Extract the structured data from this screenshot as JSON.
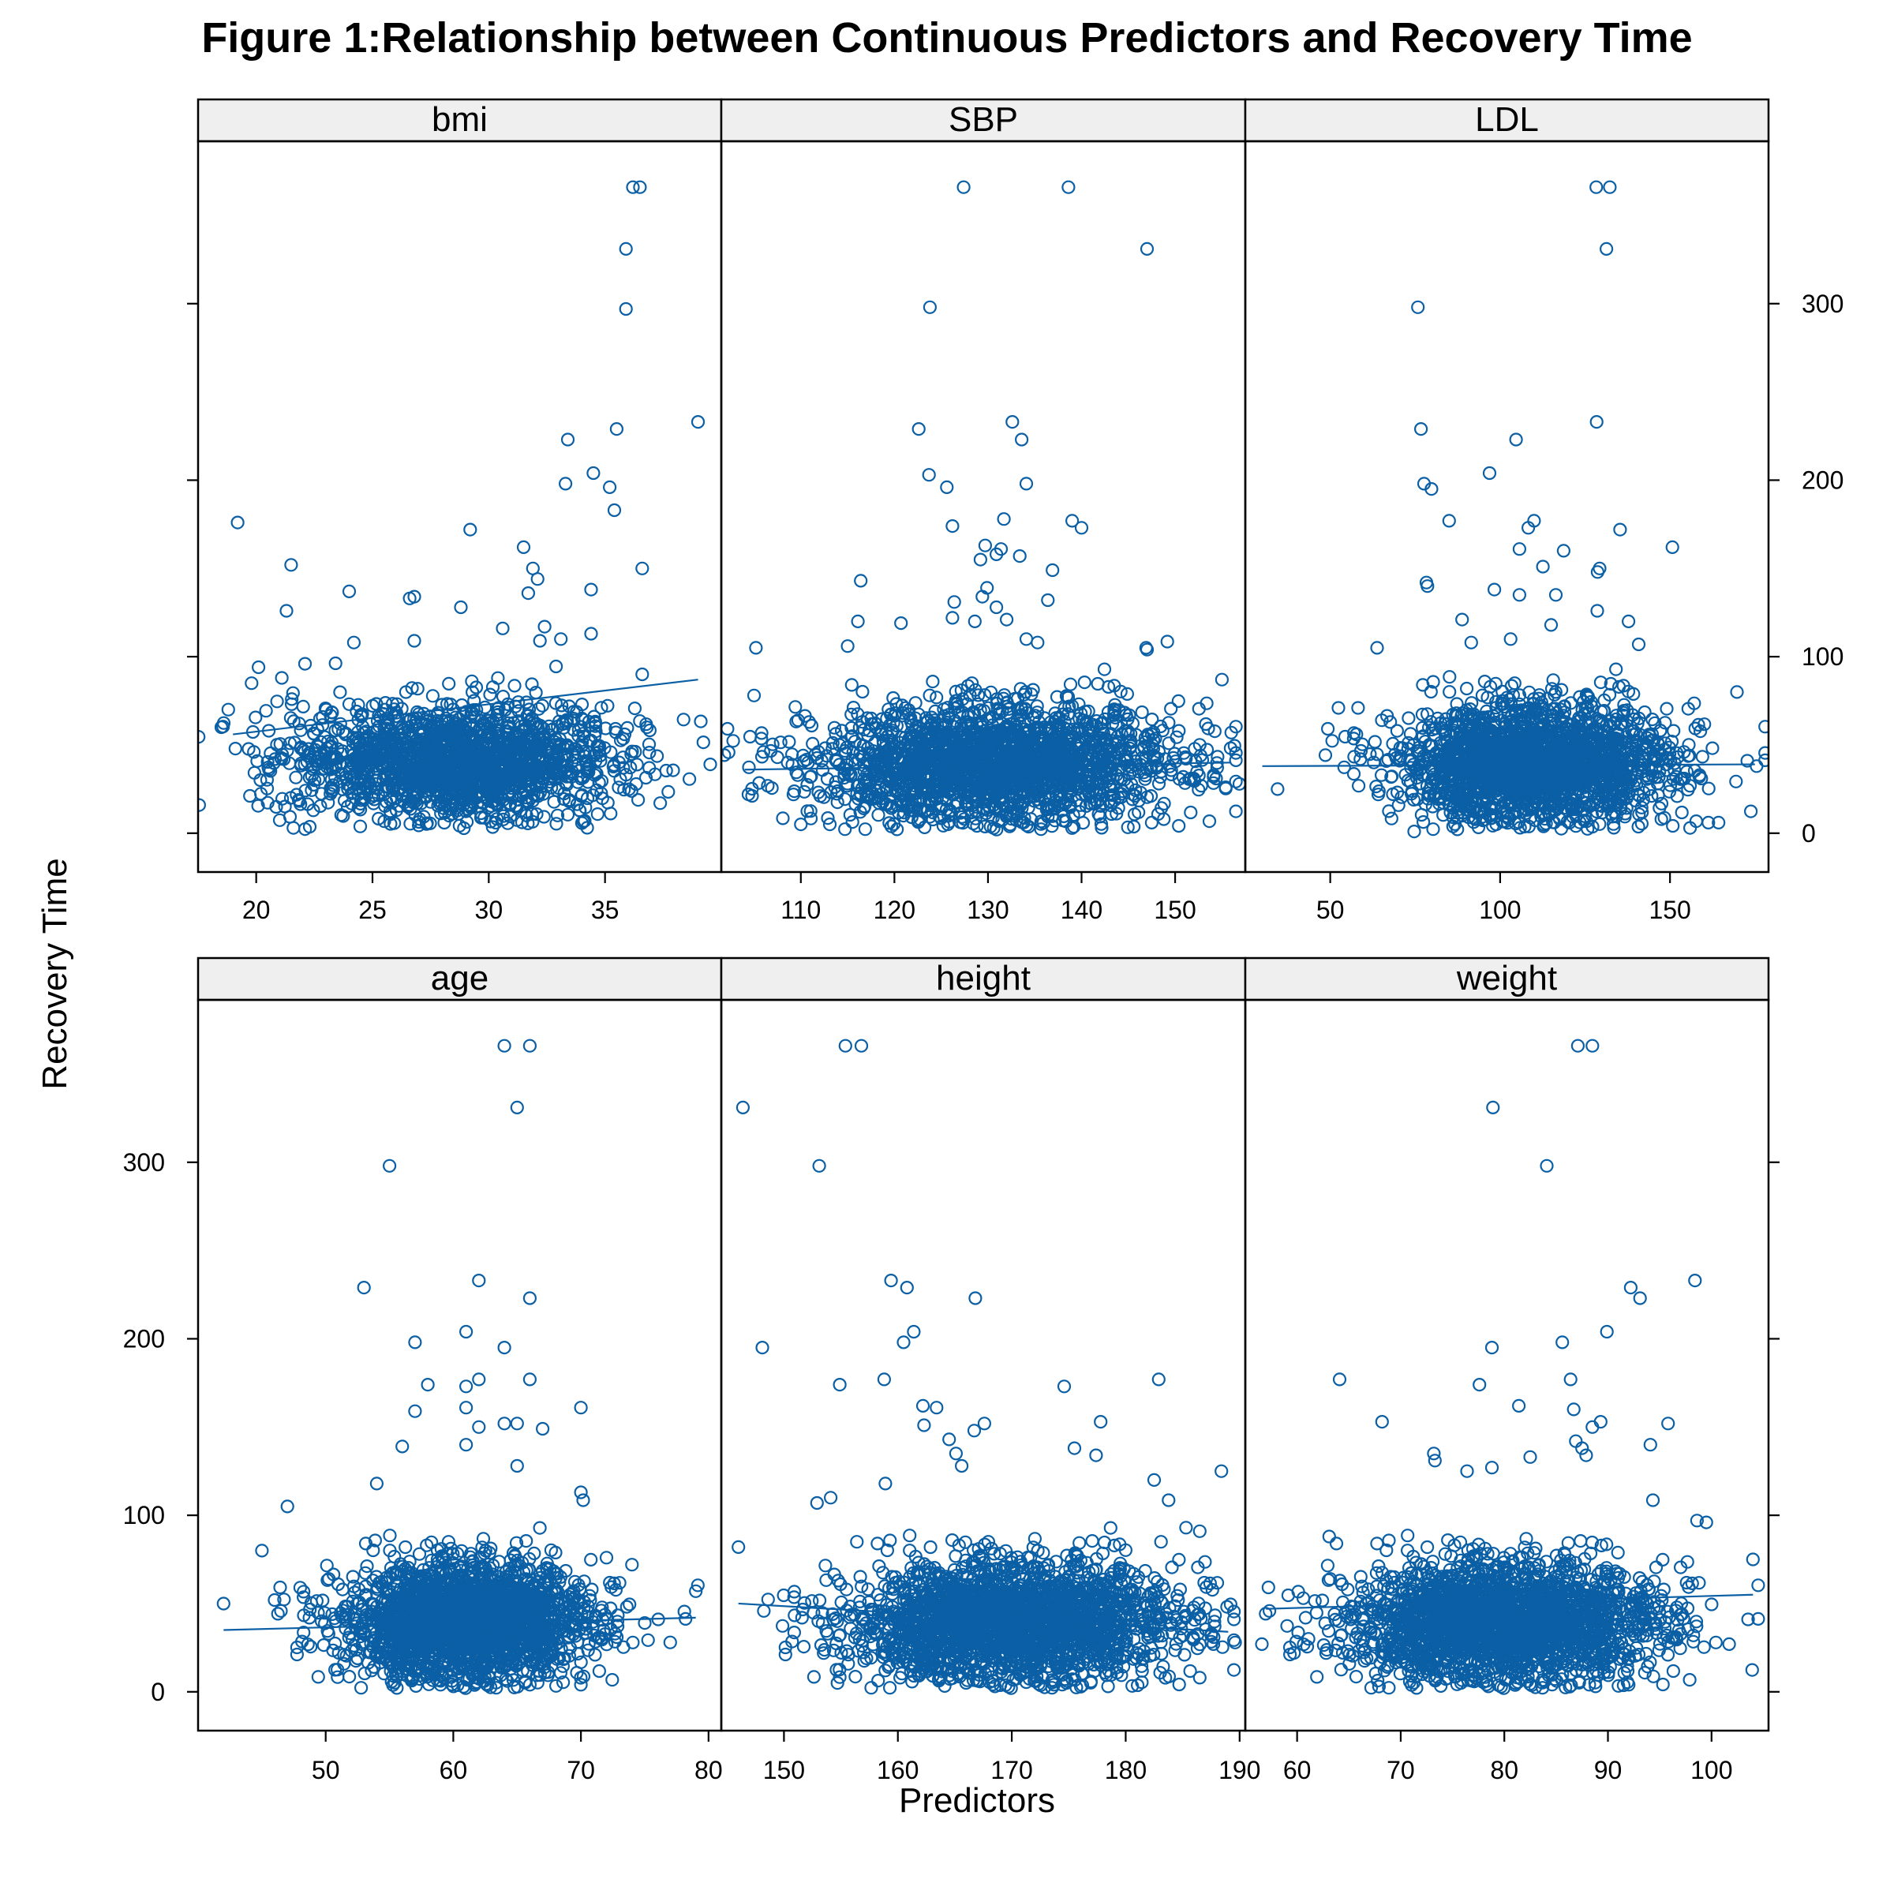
{
  "chart_data": {
    "type": "scatter",
    "title": "Figure 1:Relationship between Continuous Predictors and Recovery Time",
    "xlabel": "Predictors",
    "ylabel": "Recovery Time",
    "ylim": [
      -22,
      392
    ],
    "y_ticks": [
      0,
      100,
      200,
      300
    ],
    "layout": "3 columns x 2 rows, shared y axis, y ticks alternating right (top row) / left (bottom row), x ticks below each row",
    "grid": false,
    "marker_color": "#0b5fa5",
    "strip_color": "#efefef",
    "panels": [
      {
        "name": "bmi",
        "xlim": [
          17.5,
          40.0
        ],
        "x_ticks": [
          20,
          25,
          30,
          35
        ],
        "fit_line": [
          [
            19.0,
            56
          ],
          [
            39.0,
            87
          ]
        ],
        "cloud": {
          "n": 1700,
          "x_mean": 28.5,
          "x_sd": 3.3,
          "y_mean": 40,
          "y_sd": 16
        },
        "points": [
          [
            19.2,
            176
          ],
          [
            21.5,
            152
          ],
          [
            21.3,
            126
          ],
          [
            24.0,
            137
          ],
          [
            26.6,
            133
          ],
          [
            26.8,
            134
          ],
          [
            28.8,
            128
          ],
          [
            29.2,
            172
          ],
          [
            31.5,
            162
          ],
          [
            31.9,
            150
          ],
          [
            32.1,
            144
          ],
          [
            31.7,
            136
          ],
          [
            32.4,
            117
          ],
          [
            32.2,
            109
          ],
          [
            33.1,
            110
          ],
          [
            33.3,
            198
          ],
          [
            33.4,
            223
          ],
          [
            34.4,
            138
          ],
          [
            34.5,
            204
          ],
          [
            35.2,
            196
          ],
          [
            35.4,
            183
          ],
          [
            35.5,
            229
          ],
          [
            36.6,
            150
          ],
          [
            39.0,
            233
          ],
          [
            35.9,
            297
          ],
          [
            35.9,
            331
          ],
          [
            36.2,
            366
          ],
          [
            36.5,
            366
          ],
          [
            18.8,
            70
          ],
          [
            19.8,
            85
          ],
          [
            20.1,
            94
          ],
          [
            21.1,
            88
          ],
          [
            22.1,
            96
          ],
          [
            24.2,
            108
          ],
          [
            26.8,
            109
          ],
          [
            30.6,
            116
          ],
          [
            34.4,
            113
          ],
          [
            36.6,
            90
          ],
          [
            36.8,
            60
          ],
          [
            19.9,
            46
          ],
          [
            21.6,
            3
          ],
          [
            34.8,
            44
          ],
          [
            33.9,
            13
          ]
        ]
      },
      {
        "name": "SBP",
        "xlim": [
          101.5,
          157.5
        ],
        "x_ticks": [
          110,
          120,
          130,
          140,
          150
        ],
        "fit_line": [
          [
            104.0,
            36
          ],
          [
            156.0,
            40
          ]
        ],
        "cloud": {
          "n": 2000,
          "x_mean": 131,
          "x_sd": 9.5,
          "y_mean": 40,
          "y_sd": 16
        },
        "points": [
          [
            127.4,
            366
          ],
          [
            138.6,
            366
          ],
          [
            147.0,
            331
          ],
          [
            123.8,
            298
          ],
          [
            122.6,
            229
          ],
          [
            123.7,
            203
          ],
          [
            125.6,
            196
          ],
          [
            132.6,
            233
          ],
          [
            133.6,
            223
          ],
          [
            134.1,
            198
          ],
          [
            139.0,
            177
          ],
          [
            140.0,
            173
          ],
          [
            126.2,
            174
          ],
          [
            131.7,
            178
          ],
          [
            129.7,
            163
          ],
          [
            129.2,
            155
          ],
          [
            130.9,
            158
          ],
          [
            131.4,
            161
          ],
          [
            133.4,
            157
          ],
          [
            136.9,
            149
          ],
          [
            116.4,
            143
          ],
          [
            126.4,
            131
          ],
          [
            129.9,
            139
          ],
          [
            129.4,
            134
          ],
          [
            130.9,
            128
          ],
          [
            128.6,
            120
          ],
          [
            132.0,
            121
          ],
          [
            136.4,
            132
          ],
          [
            134.1,
            110
          ],
          [
            116.1,
            120
          ],
          [
            115.0,
            106
          ],
          [
            105.2,
            105
          ],
          [
            105.0,
            78
          ],
          [
            120.7,
            119
          ],
          [
            126.2,
            122
          ],
          [
            135.3,
            108
          ],
          [
            146.9,
            105
          ],
          [
            147.0,
            104
          ],
          [
            155.0,
            87
          ],
          [
            156.0,
            57
          ],
          [
            155.4,
            26
          ],
          [
            104.4,
            22
          ],
          [
            106.0,
            46
          ],
          [
            110.0,
            5
          ],
          [
            107.5,
            43
          ],
          [
            113.1,
            5
          ],
          [
            147.5,
            6
          ],
          [
            150.4,
            58
          ]
        ]
      },
      {
        "name": "LDL",
        "xlim": [
          25.0,
          179.0
        ],
        "x_ticks": [
          50,
          100,
          150
        ],
        "fit_line": [
          [
            30.0,
            38
          ],
          [
            175.0,
            39
          ]
        ],
        "cloud": {
          "n": 2000,
          "x_mean": 110,
          "x_sd": 20,
          "y_mean": 40,
          "y_sd": 16
        },
        "points": [
          [
            128.3,
            366
          ],
          [
            132.3,
            366
          ],
          [
            131.3,
            331
          ],
          [
            75.8,
            298
          ],
          [
            76.7,
            229
          ],
          [
            77.6,
            198
          ],
          [
            79.8,
            195
          ],
          [
            96.9,
            204
          ],
          [
            104.7,
            223
          ],
          [
            128.4,
            233
          ],
          [
            85.0,
            177
          ],
          [
            108.3,
            173
          ],
          [
            110.0,
            177
          ],
          [
            112.6,
            151
          ],
          [
            129.3,
            150
          ],
          [
            128.7,
            148
          ],
          [
            135.3,
            172
          ],
          [
            150.7,
            162
          ],
          [
            118.7,
            160
          ],
          [
            105.7,
            161
          ],
          [
            78.3,
            142
          ],
          [
            78.6,
            140
          ],
          [
            98.3,
            138
          ],
          [
            105.7,
            135
          ],
          [
            116.4,
            135
          ],
          [
            128.6,
            126
          ],
          [
            88.8,
            121
          ],
          [
            91.5,
            108
          ],
          [
            103.1,
            110
          ],
          [
            115.0,
            118
          ],
          [
            137.8,
            120
          ],
          [
            140.8,
            107
          ],
          [
            63.8,
            105
          ],
          [
            52.4,
            71
          ],
          [
            58.2,
            71
          ],
          [
            57.7,
            56
          ],
          [
            169.7,
            80
          ],
          [
            175.5,
            38
          ],
          [
            34.5,
            25
          ],
          [
            74.7,
            1
          ],
          [
            155.9,
            3
          ],
          [
            161.3,
            6
          ],
          [
            164.3,
            6
          ]
        ]
      },
      {
        "name": "age",
        "xlim": [
          40.0,
          81.0
        ],
        "x_ticks": [
          50,
          60,
          70,
          80
        ],
        "fit_line": [
          [
            42.0,
            35
          ],
          [
            79.0,
            42
          ]
        ],
        "cloud": {
          "n": 2200,
          "x_mean": 61,
          "x_sd": 4.8,
          "y_mean": 40,
          "y_sd": 16
        },
        "points": [
          [
            64.0,
            366
          ],
          [
            66.0,
            366
          ],
          [
            65.0,
            331
          ],
          [
            55.0,
            298
          ],
          [
            53.0,
            229
          ],
          [
            62.0,
            233
          ],
          [
            66.0,
            223
          ],
          [
            57.0,
            198
          ],
          [
            61.0,
            204
          ],
          [
            64.0,
            195
          ],
          [
            58.0,
            174
          ],
          [
            61.0,
            173
          ],
          [
            62.0,
            177
          ],
          [
            66.0,
            177
          ],
          [
            57.0,
            159
          ],
          [
            61.0,
            161
          ],
          [
            62.0,
            150
          ],
          [
            64.0,
            152
          ],
          [
            65.0,
            152
          ],
          [
            67.0,
            149
          ],
          [
            70.0,
            161
          ],
          [
            56.0,
            139
          ],
          [
            61.0,
            140
          ],
          [
            65.0,
            128
          ],
          [
            70.0,
            113
          ],
          [
            54.0,
            118
          ],
          [
            47.0,
            105
          ],
          [
            42.0,
            50
          ],
          [
            45.0,
            80
          ],
          [
            48.0,
            59
          ],
          [
            46.0,
            52
          ],
          [
            74.0,
            72
          ],
          [
            72.0,
            76
          ],
          [
            79.0,
            57
          ],
          [
            77.0,
            28
          ],
          [
            75.0,
            39
          ],
          [
            70.0,
            4
          ],
          [
            66.0,
            4
          ],
          [
            59.0,
            4
          ]
        ]
      },
      {
        "name": "height",
        "xlim": [
          144.5,
          190.5
        ],
        "x_ticks": [
          150,
          160,
          170,
          180,
          190
        ],
        "fit_line": [
          [
            146.0,
            50
          ],
          [
            189.0,
            34
          ]
        ],
        "cloud": {
          "n": 2200,
          "x_mean": 170,
          "x_sd": 7.2,
          "y_mean": 40,
          "y_sd": 16
        },
        "points": [
          [
            155.4,
            366
          ],
          [
            156.8,
            366
          ],
          [
            146.4,
            331
          ],
          [
            153.1,
            298
          ],
          [
            148.1,
            195
          ],
          [
            159.4,
            233
          ],
          [
            160.8,
            229
          ],
          [
            166.8,
            223
          ],
          [
            160.5,
            198
          ],
          [
            161.4,
            204
          ],
          [
            154.9,
            174
          ],
          [
            158.8,
            177
          ],
          [
            162.2,
            162
          ],
          [
            163.4,
            161
          ],
          [
            162.3,
            151
          ],
          [
            166.7,
            148
          ],
          [
            167.6,
            152
          ],
          [
            174.6,
            173
          ],
          [
            182.9,
            177
          ],
          [
            177.8,
            153
          ],
          [
            164.5,
            143
          ],
          [
            165.1,
            135
          ],
          [
            165.6,
            128
          ],
          [
            175.5,
            138
          ],
          [
            177.4,
            134
          ],
          [
            152.9,
            107
          ],
          [
            154.1,
            110
          ],
          [
            146.0,
            82
          ],
          [
            156.4,
            85
          ],
          [
            158.9,
            118
          ],
          [
            188.4,
            125
          ],
          [
            186.5,
            91
          ],
          [
            185.3,
            93
          ],
          [
            183.1,
            85
          ],
          [
            187.7,
            27
          ],
          [
            186.5,
            8
          ],
          [
            174.8,
            5
          ],
          [
            173.7,
            4
          ],
          [
            154.7,
            5
          ],
          [
            160.2,
            8
          ],
          [
            161.8,
            10
          ],
          [
            182.5,
            120
          ]
        ]
      },
      {
        "name": "weight",
        "xlim": [
          55.0,
          105.5
        ],
        "x_ticks": [
          60,
          70,
          80,
          90,
          100
        ],
        "fit_line": [
          [
            57.0,
            47
          ],
          [
            104.0,
            55
          ]
        ],
        "cloud": {
          "n": 2200,
          "x_mean": 80,
          "x_sd": 7.5,
          "y_mean": 40,
          "y_sd": 16
        },
        "points": [
          [
            87.1,
            366
          ],
          [
            88.5,
            366
          ],
          [
            78.9,
            331
          ],
          [
            84.1,
            298
          ],
          [
            92.2,
            229
          ],
          [
            93.1,
            223
          ],
          [
            98.4,
            233
          ],
          [
            78.8,
            195
          ],
          [
            85.6,
            198
          ],
          [
            89.9,
            204
          ],
          [
            64.1,
            177
          ],
          [
            77.6,
            174
          ],
          [
            86.4,
            177
          ],
          [
            68.2,
            153
          ],
          [
            81.4,
            162
          ],
          [
            86.7,
            160
          ],
          [
            88.5,
            150
          ],
          [
            89.3,
            153
          ],
          [
            95.8,
            152
          ],
          [
            86.9,
            142
          ],
          [
            87.5,
            138
          ],
          [
            87.9,
            134
          ],
          [
            73.2,
            135
          ],
          [
            73.3,
            131
          ],
          [
            82.5,
            133
          ],
          [
            94.1,
            140
          ],
          [
            76.4,
            125
          ],
          [
            78.8,
            127
          ],
          [
            63.1,
            88
          ],
          [
            63.8,
            84
          ],
          [
            60.6,
            53
          ],
          [
            104.0,
            75
          ],
          [
            101.7,
            27
          ],
          [
            99.5,
            96
          ],
          [
            98.6,
            97
          ],
          [
            56.6,
            27
          ],
          [
            59.7,
            22
          ],
          [
            61.1,
            30
          ],
          [
            67.9,
            3
          ],
          [
            88.2,
            4
          ],
          [
            92.0,
            4
          ]
        ]
      }
    ]
  }
}
